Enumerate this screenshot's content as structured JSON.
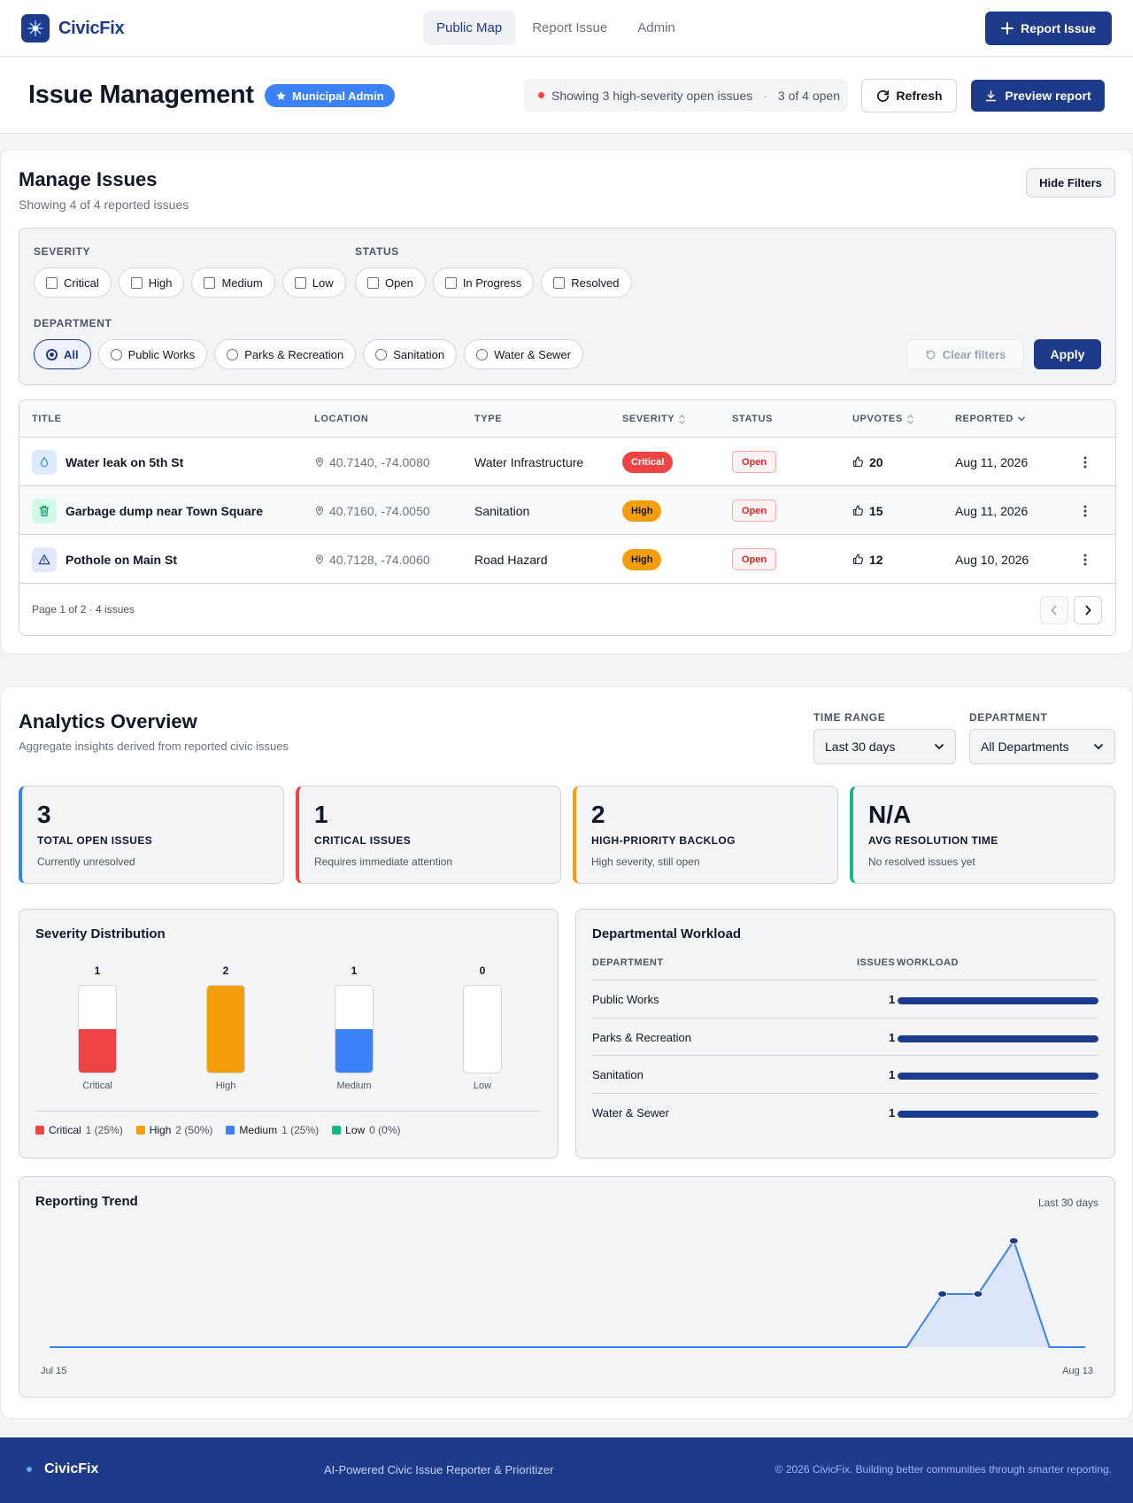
{
  "nav": {
    "brand": "CivicFix",
    "links": [
      {
        "label": "Public Map",
        "active": true
      },
      {
        "label": "Report Issue",
        "active": false
      },
      {
        "label": "Admin",
        "active": false
      }
    ],
    "report_button": "Report Issue"
  },
  "header": {
    "title": "Issue Management",
    "role_badge": "Municipal Admin",
    "status_text": "Showing 3 high-severity open issues",
    "status_count": "3 of 4 open",
    "refresh_label": "Refresh",
    "preview_label": "Preview report"
  },
  "manage": {
    "title": "Manage Issues",
    "subtitle": "Showing 4 of 4 reported issues",
    "hide_filters_label": "Hide Filters",
    "filters": {
      "severity_label": "SEVERITY",
      "severity_options": [
        "Critical",
        "High",
        "Medium",
        "Low"
      ],
      "status_label": "STATUS",
      "status_options": [
        "Open",
        "In Progress",
        "Resolved"
      ],
      "department_label": "DEPARTMENT",
      "department_options": [
        "All",
        "Public Works",
        "Parks & Recreation",
        "Sanitation",
        "Water & Sewer"
      ],
      "department_selected": "All",
      "clear_label": "Clear filters",
      "apply_label": "Apply"
    },
    "table": {
      "columns": [
        "TITLE",
        "LOCATION",
        "TYPE",
        "SEVERITY",
        "STATUS",
        "UPVOTES",
        "REPORTED"
      ],
      "rows": [
        {
          "icon": "water-drop-icon",
          "title": "Water leak on 5th St",
          "location": "40.7140, -74.0080",
          "type": "Water Infrastructure",
          "severity": "Critical",
          "status": "Open",
          "upvotes": "20",
          "reported": "Aug 11, 2026"
        },
        {
          "icon": "trash-icon",
          "title": "Garbage dump near Town Square",
          "location": "40.7160, -74.0050",
          "type": "Sanitation",
          "severity": "High",
          "status": "Open",
          "upvotes": "15",
          "reported": "Aug 11, 2026"
        },
        {
          "icon": "warning-icon",
          "title": "Pothole on Main St",
          "location": "40.7128, -74.0060",
          "type": "Road Hazard",
          "severity": "High",
          "status": "Open",
          "upvotes": "12",
          "reported": "Aug 10, 2026"
        }
      ],
      "page_info": "Page 1 of 2 · 4 issues"
    }
  },
  "analytics": {
    "title": "Analytics Overview",
    "subtitle": "Aggregate insights derived from reported civic issues",
    "time_range_label": "TIME RANGE",
    "time_range_value": "Last 30 days",
    "department_label": "DEPARTMENT",
    "department_value": "All Departments",
    "kpis": [
      {
        "value": "3",
        "label": "TOTAL OPEN ISSUES",
        "sub": "Currently unresolved",
        "color": "#3b82f6"
      },
      {
        "value": "1",
        "label": "CRITICAL ISSUES",
        "sub": "Requires immediate attention",
        "color": "#ef4444"
      },
      {
        "value": "2",
        "label": "HIGH-PRIORITY BACKLOG",
        "sub": "High severity, still open",
        "color": "#f59e0b"
      },
      {
        "value": "N/A",
        "label": "AVG RESOLUTION TIME",
        "sub": "No resolved issues yet",
        "color": "#10b981"
      }
    ],
    "severity_distribution": {
      "title": "Severity Distribution",
      "legend": [
        {
          "name": "Critical",
          "text": "1 (25%)",
          "color": "#ef4444"
        },
        {
          "name": "High",
          "text": "2 (50%)",
          "color": "#f59e0b"
        },
        {
          "name": "Medium",
          "text": "1 (25%)",
          "color": "#3b82f6"
        },
        {
          "name": "Low",
          "text": "0 (0%)",
          "color": "#10b981"
        }
      ]
    },
    "workload": {
      "title": "Departmental Workload",
      "col_department": "DEPARTMENT",
      "col_issues": "ISSUES",
      "col_workload": "WORKLOAD",
      "rows": [
        {
          "name": "Public Works",
          "count": "1",
          "fraction": 1.0
        },
        {
          "name": "Parks & Recreation",
          "count": "1",
          "fraction": 1.0
        },
        {
          "name": "Sanitation",
          "count": "1",
          "fraction": 1.0
        },
        {
          "name": "Water & Sewer",
          "count": "1",
          "fraction": 1.0
        }
      ]
    },
    "trend": {
      "title": "Reporting Trend",
      "range_label": "Last 30 days",
      "x_start": "Jul 15",
      "x_end": "Aug 13"
    }
  },
  "chart_data": [
    {
      "type": "bar",
      "title": "Severity Distribution",
      "categories": [
        "Critical",
        "High",
        "Medium",
        "Low"
      ],
      "values": [
        1,
        2,
        1,
        0
      ],
      "ylim": [
        0,
        2
      ],
      "colors": [
        "#ef4444",
        "#f59e0b",
        "#3b82f6",
        "#10b981"
      ]
    },
    {
      "type": "area",
      "title": "Reporting Trend",
      "x_start": "Jul 15",
      "x_end": "Aug 13",
      "values": [
        0,
        0,
        0,
        0,
        0,
        0,
        0,
        0,
        0,
        0,
        0,
        0,
        0,
        0,
        0,
        0,
        0,
        0,
        0,
        0,
        0,
        0,
        0,
        0,
        0,
        1,
        1,
        2,
        0,
        0
      ],
      "markers": [
        25,
        26,
        27
      ],
      "ylim": [
        0,
        2
      ],
      "color": "#3b82f6"
    }
  ],
  "footer": {
    "brand": "CivicFix",
    "tagline": "AI-Powered Civic Issue Reporter & Prioritizer",
    "copyright": "© 2026 CivicFix. Building better communities through smarter reporting."
  }
}
